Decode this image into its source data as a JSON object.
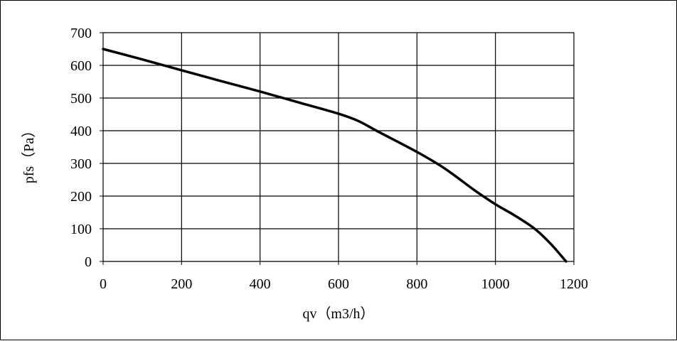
{
  "chart_data": {
    "type": "line",
    "title": "",
    "xlabel": "qv（m3/h）",
    "ylabel": "pfs（Pa）",
    "xlim": [
      0,
      1200
    ],
    "ylim": [
      0,
      700
    ],
    "xticks": [
      0,
      200,
      400,
      600,
      800,
      1000,
      1200
    ],
    "yticks": [
      0,
      100,
      200,
      300,
      400,
      500,
      600,
      700
    ],
    "xtick_labels": [
      "0",
      "200",
      "400",
      "600",
      "800",
      "1000",
      "1200"
    ],
    "ytick_labels": [
      "0",
      "100",
      "200",
      "300",
      "400",
      "500",
      "600",
      "700"
    ],
    "grid": true,
    "legend": "none",
    "series": [
      {
        "color": "#000000",
        "x": [
          0,
          100,
          200,
          300,
          400,
          500,
          600,
          650,
          700,
          800,
          870,
          950,
          1000,
          1050,
          1100,
          1140,
          1180
        ],
        "y": [
          650,
          618,
          585,
          552,
          520,
          486,
          452,
          430,
          398,
          335,
          285,
          215,
          175,
          140,
          100,
          55,
          0
        ]
      }
    ]
  }
}
